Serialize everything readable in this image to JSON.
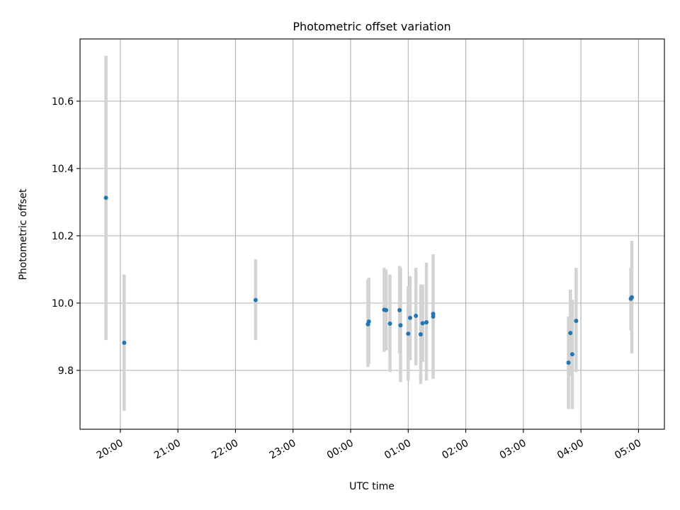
{
  "chart_data": {
    "type": "scatter",
    "title": "Photometric offset variation",
    "xlabel": "UTC time",
    "ylabel": "Photometric offset",
    "x_ticks": [
      "20:00",
      "21:00",
      "22:00",
      "23:00",
      "00:00",
      "01:00",
      "02:00",
      "03:00",
      "04:00",
      "05:00"
    ],
    "xlim": [
      "19:18",
      "05:27"
    ],
    "y_ticks": [
      "9.8",
      "10.0",
      "10.2",
      "10.4",
      "10.6"
    ],
    "ylim": [
      9.625,
      10.785
    ],
    "grid": true,
    "point_color": "#1f77b4",
    "errorbar_color": "#d3d3d3",
    "points": [
      {
        "x": "19:45",
        "y": 10.313,
        "ylo": 9.89,
        "yhi": 10.735
      },
      {
        "x": "20:04",
        "y": 9.882,
        "ylo": 9.68,
        "yhi": 10.085
      },
      {
        "x": "22:21",
        "y": 10.009,
        "ylo": 9.89,
        "yhi": 10.13
      },
      {
        "x": "00:18",
        "y": 9.937,
        "ylo": 9.81,
        "yhi": 10.07
      },
      {
        "x": "00:19",
        "y": 9.945,
        "ylo": 9.82,
        "yhi": 10.075
      },
      {
        "x": "00:35",
        "y": 9.98,
        "ylo": 9.855,
        "yhi": 10.105
      },
      {
        "x": "00:37",
        "y": 9.979,
        "ylo": 9.86,
        "yhi": 10.1
      },
      {
        "x": "00:41",
        "y": 9.939,
        "ylo": 9.795,
        "yhi": 10.085
      },
      {
        "x": "00:51",
        "y": 9.979,
        "ylo": 9.85,
        "yhi": 10.11
      },
      {
        "x": "00:52",
        "y": 9.934,
        "ylo": 9.765,
        "yhi": 10.105
      },
      {
        "x": "01:00",
        "y": 9.909,
        "ylo": 9.77,
        "yhi": 10.05
      },
      {
        "x": "01:02",
        "y": 9.956,
        "ylo": 9.83,
        "yhi": 10.08
      },
      {
        "x": "01:08",
        "y": 9.962,
        "ylo": 9.815,
        "yhi": 10.105
      },
      {
        "x": "01:13",
        "y": 9.907,
        "ylo": 9.76,
        "yhi": 10.055
      },
      {
        "x": "01:15",
        "y": 9.94,
        "ylo": 9.825,
        "yhi": 10.055
      },
      {
        "x": "01:19",
        "y": 9.943,
        "ylo": 9.77,
        "yhi": 10.12
      },
      {
        "x": "01:26",
        "y": 9.968,
        "ylo": 9.775,
        "yhi": 10.145
      },
      {
        "x": "01:26",
        "y": 9.96,
        "ylo": 9.785,
        "yhi": 10.135
      },
      {
        "x": "03:47",
        "y": 9.823,
        "ylo": 9.685,
        "yhi": 9.96
      },
      {
        "x": "03:49",
        "y": 9.911,
        "ylo": 9.785,
        "yhi": 10.04
      },
      {
        "x": "03:51",
        "y": 9.848,
        "ylo": 9.685,
        "yhi": 10.01
      },
      {
        "x": "03:55",
        "y": 9.947,
        "ylo": 9.795,
        "yhi": 10.105
      },
      {
        "x": "04:52",
        "y": 10.013,
        "ylo": 9.92,
        "yhi": 10.105
      },
      {
        "x": "04:53",
        "y": 10.017,
        "ylo": 9.85,
        "yhi": 10.185
      }
    ]
  }
}
